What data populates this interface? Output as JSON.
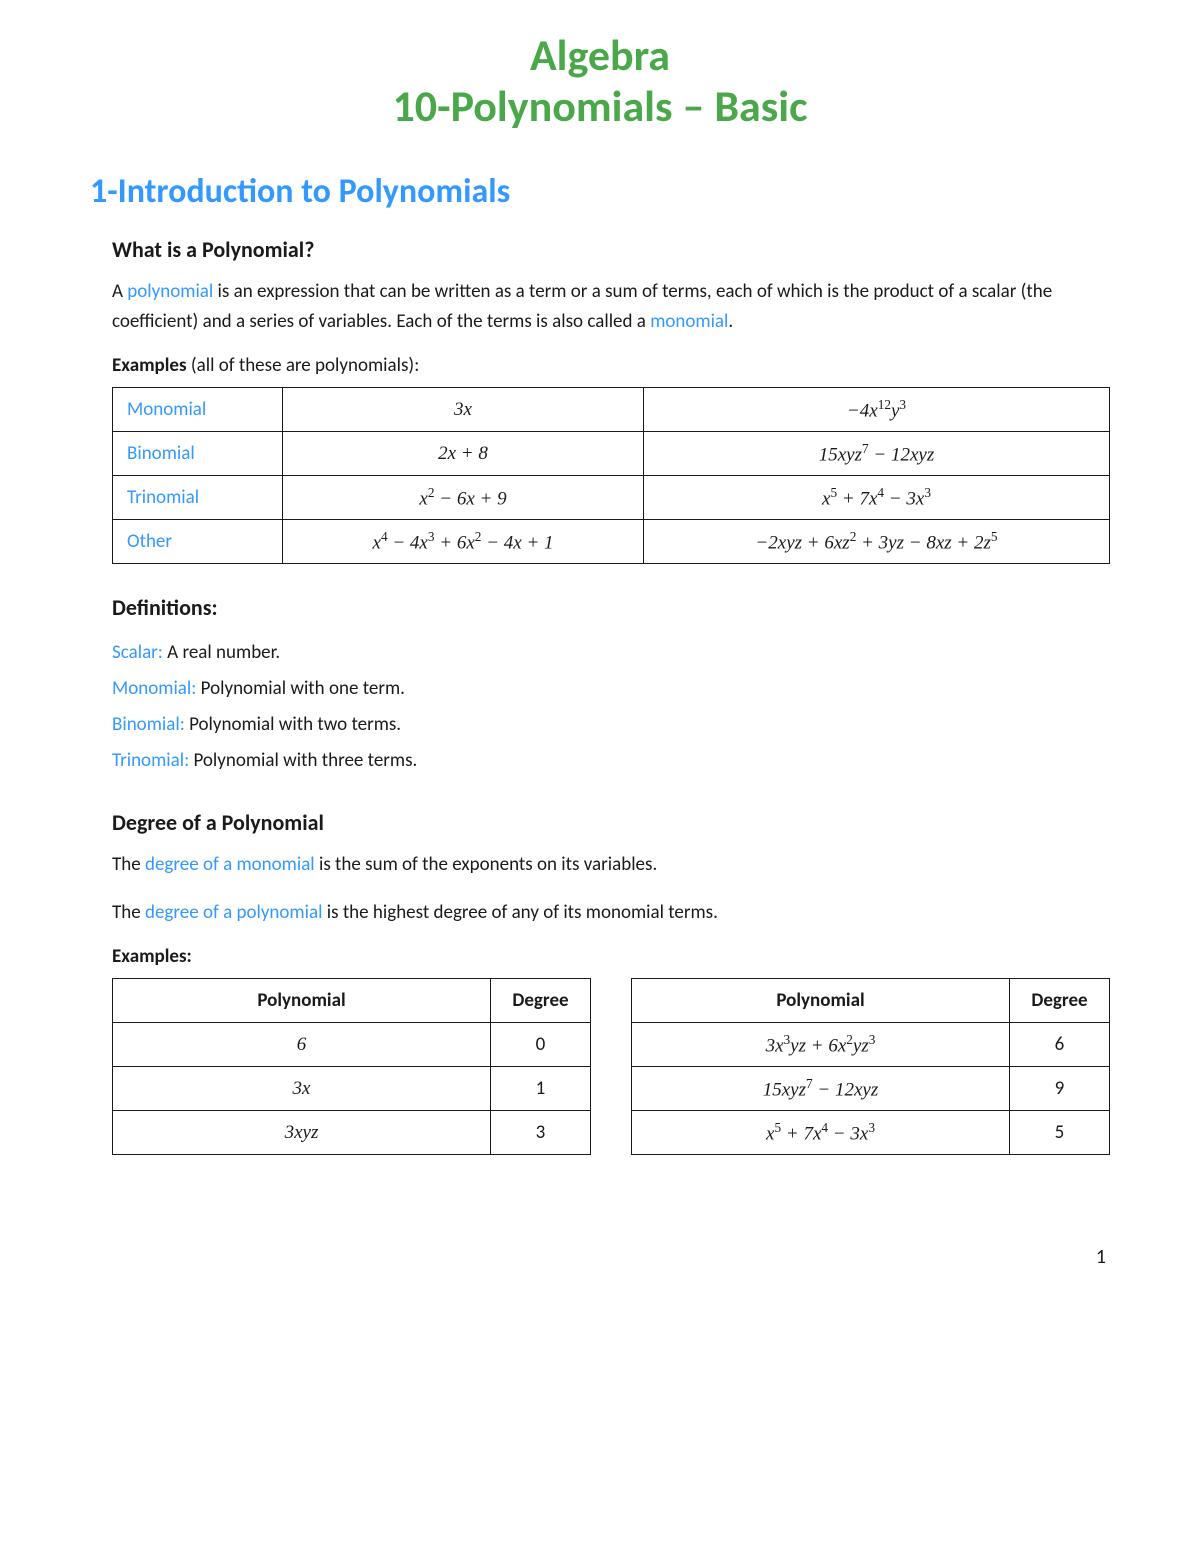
{
  "title": {
    "line1": "Algebra",
    "line2": "10-Polynomials – Basic"
  },
  "section": "1-Introduction to Polynomials",
  "sub1": "What is a Polynomial?",
  "intro": {
    "pre": "A ",
    "term1": "polynomial",
    "mid": " is an expression that can be written as a term or a sum of terms, each of which is the product of a scalar (the coefficient) and a series of variables.  Each of the terms is also called a ",
    "term2": "monomial",
    "post": "."
  },
  "examples1": {
    "lead": "Examples",
    "rest": " (all of these are polynomials):"
  },
  "types_table": {
    "rows": [
      {
        "label": "Monomial",
        "c1": "3x",
        "c2": "−4x<sup>12</sup>y<sup>3</sup>"
      },
      {
        "label": "Binomial",
        "c1": "2x + 8",
        "c2": "15xyz<sup>7</sup> − 12xyz"
      },
      {
        "label": "Trinomial",
        "c1": "x<sup>2</sup> − 6x + 9",
        "c2": "x<sup>5</sup> + 7x<sup>4</sup> − 3x<sup>3</sup>"
      },
      {
        "label": "Other",
        "c1": "x<sup>4</sup> − 4x<sup>3</sup> + 6x<sup>2</sup> − 4x + 1",
        "c2": "−2xyz + 6xz<sup>2</sup> + 3yz − 8xz + 2z<sup>5</sup>"
      }
    ]
  },
  "defs_head": "Definitions:",
  "defs": [
    {
      "term": "Scalar:",
      "body": "  A real number."
    },
    {
      "term": "Monomial:",
      "body": "  Polynomial with one term."
    },
    {
      "term": "Binomial:",
      "body": "  Polynomial with two terms."
    },
    {
      "term": "Trinomial:",
      "body": "  Polynomial with three terms."
    }
  ],
  "degree_head": "Degree of a Polynomial",
  "degree_p1": {
    "pre": "The ",
    "term": "degree of a monomial",
    "post": " is the sum of the exponents on its variables."
  },
  "degree_p2": {
    "pre": "The ",
    "term": "degree of a polynomial",
    "post": " is the highest degree of any of its monomial terms."
  },
  "examples2": "Examples:",
  "deg_headers": {
    "poly": "Polynomial",
    "deg": "Degree"
  },
  "deg_left": [
    {
      "poly": "6",
      "deg": "0"
    },
    {
      "poly": "3x",
      "deg": "1"
    },
    {
      "poly": "3xyz",
      "deg": "3"
    }
  ],
  "deg_right": [
    {
      "poly": "3x<sup>3</sup>yz + 6x<sup>2</sup>yz<sup>3</sup>",
      "deg": "6"
    },
    {
      "poly": "15xyz<sup>7</sup> − 12xyz",
      "deg": "9"
    },
    {
      "poly": "x<sup>5</sup> + 7x<sup>4</sup> − 3x<sup>3</sup>",
      "deg": "5"
    }
  ],
  "page_number": "1",
  "colors": {
    "title_green": "#4aa84a",
    "link_blue": "#3399ff",
    "text": "#1a1a1a",
    "border": "#1a1a1a",
    "background": "#ffffff"
  }
}
